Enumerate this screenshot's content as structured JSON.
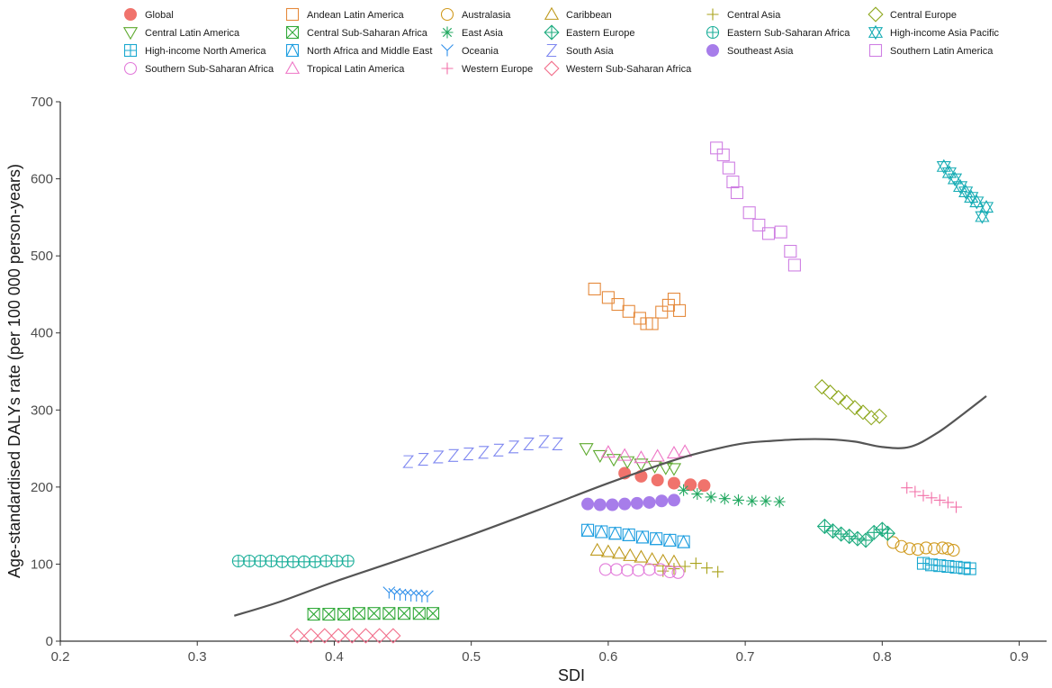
{
  "chart_data": {
    "type": "scatter",
    "title": "",
    "xlabel": "SDI",
    "ylabel": "Age-standardised DALYs rate (per 100 000 person-years)",
    "xlim": [
      0.2,
      0.92
    ],
    "ylim": [
      0,
      700
    ],
    "xticks": [
      0.2,
      0.3,
      0.4,
      0.5,
      0.6,
      0.7,
      0.8,
      0.9
    ],
    "yticks": [
      0,
      100,
      200,
      300,
      400,
      500,
      600,
      700
    ],
    "xtick_labels": [
      "0.2",
      "0.3",
      "0.4",
      "0.5",
      "0.6",
      "0.7",
      "0.8",
      "0.9"
    ],
    "ytick_labels": [
      "0",
      "100",
      "200",
      "300",
      "400",
      "500",
      "600",
      "700"
    ],
    "grid": false,
    "legend_position": "top",
    "trend_line": {
      "color": "#555555",
      "x": [
        0.327,
        0.36,
        0.4,
        0.45,
        0.5,
        0.55,
        0.6,
        0.65,
        0.68,
        0.7,
        0.72,
        0.74,
        0.76,
        0.78,
        0.8,
        0.82,
        0.84,
        0.86,
        0.876
      ],
      "y": [
        33,
        51,
        77,
        107,
        138,
        171,
        205,
        236,
        250,
        257,
        260,
        262,
        262,
        259,
        252,
        252,
        270,
        296,
        318
      ]
    },
    "series": [
      {
        "name": "Global",
        "marker": "filled-circle",
        "color": "#F0736C",
        "x": [
          0.612,
          0.624,
          0.636,
          0.648,
          0.66,
          0.67
        ],
        "y": [
          218,
          214,
          209,
          205,
          203,
          202
        ]
      },
      {
        "name": "Andean Latin America",
        "marker": "square",
        "color": "#E58A3C",
        "x": [
          0.59,
          0.6,
          0.607,
          0.615,
          0.623,
          0.628,
          0.632,
          0.639,
          0.644,
          0.648,
          0.652
        ],
        "y": [
          457,
          446,
          437,
          428,
          419,
          412,
          412,
          427,
          436,
          444,
          429
        ]
      },
      {
        "name": "Australasia",
        "marker": "circle",
        "color": "#D09A1E",
        "x": [
          0.808,
          0.814,
          0.82,
          0.826,
          0.832,
          0.838,
          0.844,
          0.848,
          0.852
        ],
        "y": [
          128,
          123,
          120,
          119,
          121,
          120,
          121,
          120,
          118
        ]
      },
      {
        "name": "Caribbean",
        "marker": "triangle-up",
        "color": "#BE9A1E",
        "x": [
          0.592,
          0.6,
          0.608,
          0.616,
          0.624,
          0.632,
          0.64,
          0.648
        ],
        "y": [
          118,
          116,
          114,
          111,
          109,
          106,
          104,
          103
        ]
      },
      {
        "name": "Central Asia",
        "marker": "plus",
        "color": "#A8A21A",
        "x": [
          0.64,
          0.648,
          0.656,
          0.664,
          0.672,
          0.68
        ],
        "y": [
          91,
          94,
          97,
          101,
          95,
          90
        ]
      },
      {
        "name": "Central Europe",
        "marker": "diamond",
        "color": "#8FA81F",
        "x": [
          0.756,
          0.762,
          0.768,
          0.774,
          0.78,
          0.786,
          0.792,
          0.798
        ],
        "y": [
          330,
          323,
          316,
          310,
          303,
          297,
          290,
          292
        ]
      },
      {
        "name": "Central Latin America",
        "marker": "triangle-down",
        "color": "#5EAA2F",
        "x": [
          0.584,
          0.594,
          0.604,
          0.614,
          0.624,
          0.634,
          0.642,
          0.648
        ],
        "y": [
          250,
          241,
          236,
          233,
          230,
          227,
          225,
          224
        ]
      },
      {
        "name": "Central Sub-Saharan Africa",
        "marker": "square-x",
        "color": "#33AA3B",
        "x": [
          0.385,
          0.396,
          0.407,
          0.418,
          0.429,
          0.44,
          0.451,
          0.462,
          0.472
        ],
        "y": [
          35,
          35,
          35,
          36,
          36,
          36,
          36,
          36,
          36
        ]
      },
      {
        "name": "East Asia",
        "marker": "asterisk",
        "color": "#22A860",
        "x": [
          0.655,
          0.665,
          0.675,
          0.685,
          0.695,
          0.705,
          0.715,
          0.725
        ],
        "y": [
          196,
          191,
          187,
          185,
          183,
          182,
          182,
          181
        ]
      },
      {
        "name": "Eastern Europe",
        "marker": "diamond-plus",
        "color": "#1CAB7E",
        "x": [
          0.758,
          0.764,
          0.77,
          0.776,
          0.782,
          0.788,
          0.794,
          0.8,
          0.804
        ],
        "y": [
          149,
          143,
          139,
          136,
          133,
          131,
          141,
          145,
          140
        ]
      },
      {
        "name": "Eastern Sub-Saharan Africa",
        "marker": "circle-plus",
        "color": "#1AAE99",
        "x": [
          0.33,
          0.338,
          0.346,
          0.354,
          0.362,
          0.37,
          0.378,
          0.386,
          0.394,
          0.402,
          0.41
        ],
        "y": [
          104,
          104,
          104,
          104,
          103,
          103,
          103,
          103,
          104,
          104,
          104
        ]
      },
      {
        "name": "High-income Asia Pacific",
        "marker": "star-of-david",
        "color": "#19ADB5",
        "x": [
          0.845,
          0.849,
          0.853,
          0.857,
          0.861,
          0.865,
          0.869,
          0.873,
          0.876
        ],
        "y": [
          616,
          608,
          600,
          590,
          583,
          576,
          570,
          551,
          563
        ]
      },
      {
        "name": "High-income North America",
        "marker": "square-plus",
        "color": "#1AA8CF",
        "x": [
          0.83,
          0.836,
          0.842,
          0.848,
          0.854,
          0.86,
          0.864
        ],
        "y": [
          101,
          99,
          98,
          97,
          96,
          95,
          94
        ]
      },
      {
        "name": "North Africa and Middle East",
        "marker": "square-triangle",
        "color": "#1E9EE0",
        "x": [
          0.585,
          0.595,
          0.605,
          0.615,
          0.625,
          0.635,
          0.645,
          0.655
        ],
        "y": [
          144,
          142,
          140,
          138,
          135,
          133,
          131,
          129
        ]
      },
      {
        "name": "Oceania",
        "marker": "y-mark",
        "color": "#2F8FEA",
        "x": [
          0.44,
          0.444,
          0.448,
          0.452,
          0.456,
          0.46,
          0.464,
          0.468
        ],
        "y": [
          63,
          61,
          60,
          60,
          59,
          59,
          58,
          58
        ]
      },
      {
        "name": "South Asia",
        "marker": "z-letter",
        "color": "#7E87F0",
        "x": [
          0.454,
          0.465,
          0.476,
          0.487,
          0.498,
          0.509,
          0.52,
          0.531,
          0.542,
          0.553,
          0.563
        ],
        "y": [
          233,
          236,
          239,
          241,
          243,
          245,
          248,
          252,
          256,
          259,
          256
        ]
      },
      {
        "name": "Southeast Asia",
        "marker": "filled-circle",
        "color": "#A77DEA",
        "x": [
          0.585,
          0.594,
          0.603,
          0.612,
          0.621,
          0.63,
          0.639,
          0.648
        ],
        "y": [
          178,
          177,
          177,
          178,
          179,
          180,
          182,
          183
        ]
      },
      {
        "name": "Southern Latin America",
        "marker": "square",
        "color": "#CF7FE3",
        "x": [
          0.679,
          0.684,
          0.688,
          0.691,
          0.694,
          0.703,
          0.71,
          0.717,
          0.726,
          0.733,
          0.736
        ],
        "y": [
          640,
          631,
          614,
          596,
          582,
          556,
          540,
          529,
          531,
          506,
          488
        ]
      },
      {
        "name": "Southern Sub-Saharan Africa",
        "marker": "circle",
        "color": "#E27ADA",
        "x": [
          0.598,
          0.606,
          0.614,
          0.622,
          0.63,
          0.638,
          0.645,
          0.651
        ],
        "y": [
          93,
          93,
          92,
          92,
          93,
          93,
          90,
          89
        ]
      },
      {
        "name": "Tropical Latin America",
        "marker": "triangle-up",
        "color": "#EE76C6",
        "x": [
          0.6,
          0.612,
          0.624,
          0.636,
          0.648,
          0.656
        ],
        "y": [
          245,
          241,
          238,
          240,
          244,
          246
        ]
      },
      {
        "name": "Western Europe",
        "marker": "plus",
        "color": "#F270A8",
        "x": [
          0.818,
          0.824,
          0.83,
          0.836,
          0.842,
          0.848,
          0.854
        ],
        "y": [
          199,
          194,
          189,
          186,
          183,
          180,
          174
        ]
      },
      {
        "name": "Western Sub-Saharan Africa",
        "marker": "diamond",
        "color": "#F26F8B",
        "x": [
          0.373,
          0.383,
          0.393,
          0.403,
          0.413,
          0.423,
          0.433,
          0.443
        ],
        "y": [
          7,
          7,
          7,
          7,
          7,
          7,
          7,
          7
        ]
      }
    ]
  }
}
